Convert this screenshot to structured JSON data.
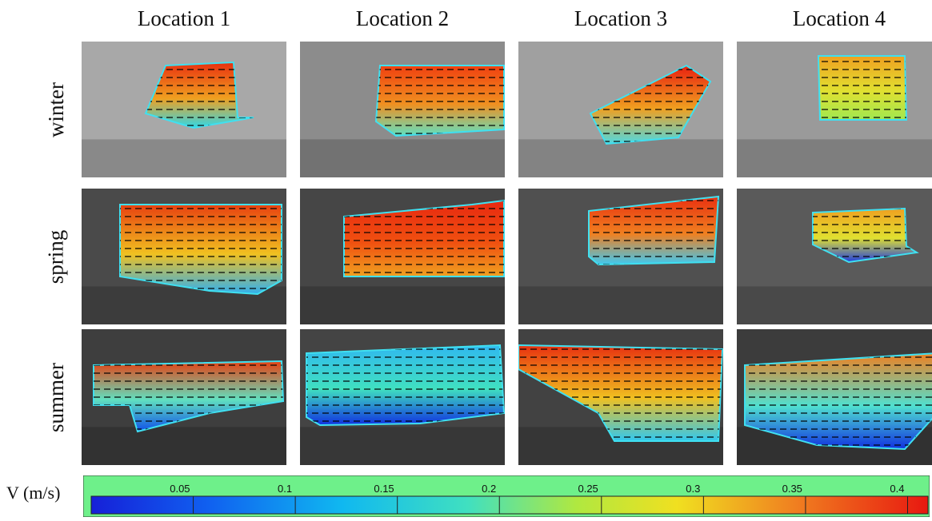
{
  "columns": [
    "Location 1",
    "Location 2",
    "Location 3",
    "Location 4"
  ],
  "rows": [
    "winter",
    "spring",
    "summer"
  ],
  "colorbar": {
    "label": "V (m/s)",
    "ticks": [
      "0.05",
      "0.1",
      "0.15",
      "0.2",
      "0.25",
      "0.3",
      "0.35",
      "0.4"
    ],
    "tick_values": [
      0.05,
      0.1,
      0.15,
      0.2,
      0.25,
      0.3,
      0.35,
      0.4
    ],
    "range": [
      0.0,
      0.41
    ],
    "colormap": "jet",
    "frame_color": "#6ef08a"
  },
  "colors": {
    "velocity_low": "#1a2cd8",
    "velocity_mid": "#f0e020",
    "velocity_high": "#e83010",
    "vector_arrows": "#000000"
  }
}
